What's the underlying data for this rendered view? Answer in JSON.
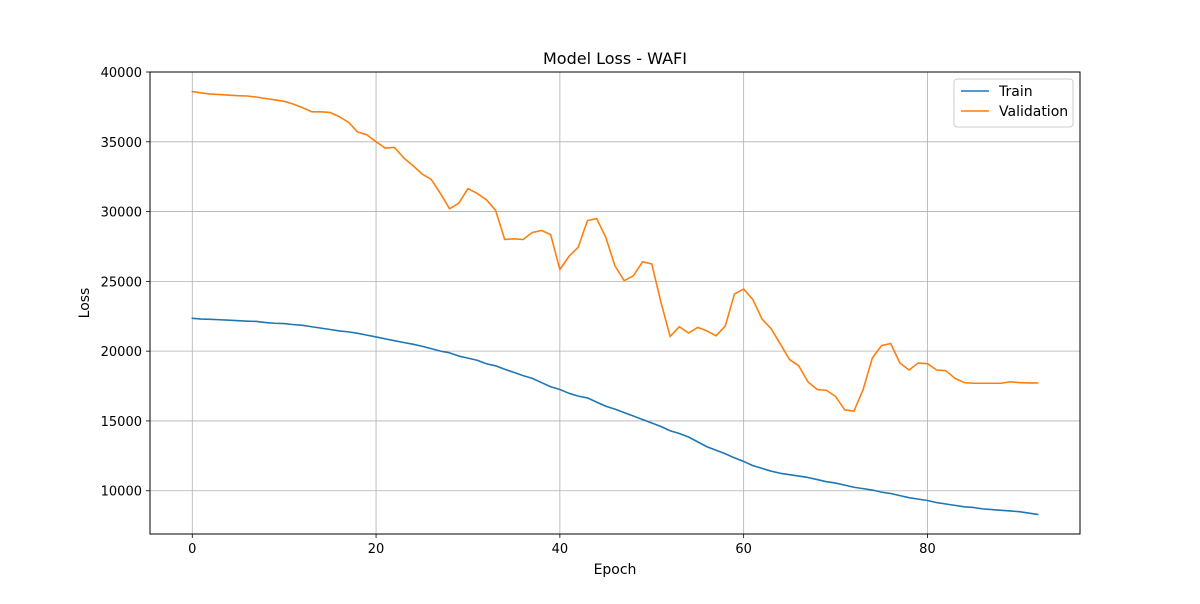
{
  "chart_data": {
    "type": "line",
    "title": "Model Loss - WAFI",
    "xlabel": "Epoch",
    "ylabel": "Loss",
    "xlim": [
      -4.6,
      96.6
    ],
    "ylim": [
      6900,
      40000
    ],
    "xticks": [
      0,
      20,
      40,
      60,
      80
    ],
    "yticks": [
      10000,
      15000,
      20000,
      25000,
      30000,
      35000,
      40000
    ],
    "grid": true,
    "legend_position": "top-right",
    "series": [
      {
        "name": "Train",
        "color": "#1f77b4",
        "x": [
          0,
          1,
          2,
          3,
          4,
          5,
          6,
          7,
          8,
          9,
          10,
          11,
          12,
          13,
          14,
          15,
          16,
          17,
          18,
          19,
          20,
          21,
          22,
          23,
          24,
          25,
          26,
          27,
          28,
          29,
          30,
          31,
          32,
          33,
          34,
          35,
          36,
          37,
          38,
          39,
          40,
          41,
          42,
          43,
          44,
          45,
          46,
          47,
          48,
          49,
          50,
          51,
          52,
          53,
          54,
          55,
          56,
          57,
          58,
          59,
          60,
          61,
          62,
          63,
          64,
          65,
          66,
          67,
          68,
          69,
          70,
          71,
          72,
          73,
          74,
          75,
          76,
          77,
          78,
          79,
          80,
          81,
          82,
          83,
          84,
          85,
          86,
          87,
          88,
          89,
          90,
          91,
          92
        ],
        "y": [
          22350,
          22300,
          22280,
          22250,
          22220,
          22180,
          22150,
          22130,
          22050,
          22000,
          21980,
          21900,
          21850,
          21750,
          21650,
          21550,
          21450,
          21380,
          21280,
          21150,
          21020,
          20880,
          20750,
          20620,
          20500,
          20350,
          20180,
          20000,
          19880,
          19650,
          19500,
          19350,
          19100,
          18950,
          18700,
          18480,
          18250,
          18050,
          17750,
          17450,
          17250,
          16980,
          16780,
          16650,
          16350,
          16050,
          15850,
          15600,
          15350,
          15100,
          14850,
          14600,
          14300,
          14100,
          13850,
          13500,
          13150,
          12900,
          12650,
          12350,
          12100,
          11800,
          11600,
          11400,
          11250,
          11150,
          11050,
          10950,
          10800,
          10650,
          10550,
          10400,
          10250,
          10150,
          10050,
          9900,
          9800,
          9650,
          9500,
          9400,
          9300,
          9150,
          9050,
          8950,
          8850,
          8800,
          8700,
          8650,
          8600,
          8550,
          8500,
          8400,
          8300
        ]
      },
      {
        "name": "Validation",
        "color": "#ff7f0e",
        "x": [
          0,
          1,
          2,
          3,
          4,
          5,
          6,
          7,
          8,
          9,
          10,
          11,
          12,
          13,
          14,
          15,
          16,
          17,
          18,
          19,
          20,
          21,
          22,
          23,
          24,
          25,
          26,
          27,
          28,
          29,
          30,
          31,
          32,
          33,
          34,
          35,
          36,
          37,
          38,
          39,
          40,
          41,
          42,
          43,
          44,
          45,
          46,
          47,
          48,
          49,
          50,
          51,
          52,
          53,
          54,
          55,
          56,
          57,
          58,
          59,
          60,
          61,
          62,
          63,
          64,
          65,
          66,
          67,
          68,
          69,
          70,
          71,
          72,
          73,
          74,
          75,
          76,
          77,
          78,
          79,
          80,
          81,
          82,
          83,
          84,
          85,
          86,
          87,
          88,
          89,
          90,
          91,
          92
        ],
        "y": [
          38600,
          38500,
          38420,
          38380,
          38340,
          38300,
          38280,
          38200,
          38100,
          38000,
          37900,
          37700,
          37450,
          37150,
          37150,
          37100,
          36800,
          36400,
          35700,
          35500,
          35000,
          34550,
          34600,
          33850,
          33300,
          32700,
          32300,
          31300,
          30200,
          30600,
          31650,
          31300,
          30850,
          30100,
          28000,
          28050,
          28000,
          28500,
          28650,
          28350,
          25850,
          26800,
          27450,
          29350,
          29500,
          28150,
          26100,
          25050,
          25400,
          26400,
          26250,
          23500,
          21050,
          21750,
          21300,
          21700,
          21450,
          21100,
          21800,
          24100,
          24450,
          23700,
          22300,
          21600,
          20500,
          19400,
          18950,
          17800,
          17250,
          17200,
          16750,
          15800,
          15700,
          17250,
          19500,
          20400,
          20550,
          19150,
          18650,
          19150,
          19100,
          18650,
          18600,
          18050,
          17750,
          17700,
          17700,
          17700,
          17700,
          17800,
          17750,
          17720,
          17720
        ]
      }
    ]
  }
}
